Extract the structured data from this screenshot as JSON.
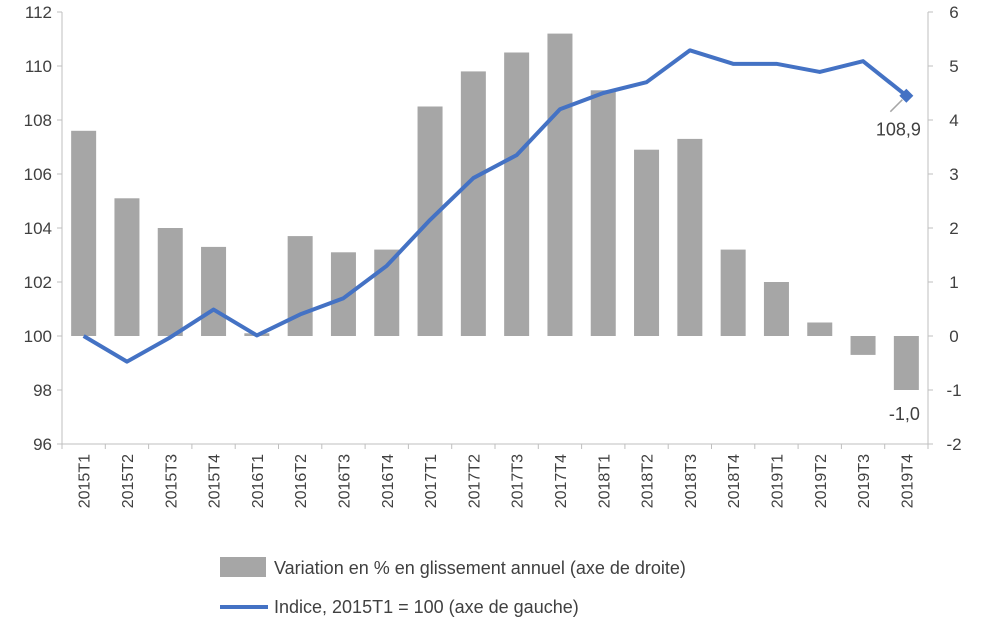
{
  "chart_data": {
    "type": "bar+line",
    "categories": [
      "2015T1",
      "2015T2",
      "2015T3",
      "2015T4",
      "2016T1",
      "2016T2",
      "2016T3",
      "2016T4",
      "2017T1",
      "2017T2",
      "2017T3",
      "2017T4",
      "2018T1",
      "2018T2",
      "2018T3",
      "2018T4",
      "2019T1",
      "2019T2",
      "2019T3",
      "2019T4"
    ],
    "series": [
      {
        "name": "Variation en % en glissement annuel (axe de droite)",
        "kind": "bar",
        "axis": "right",
        "color": "#a6a6a6",
        "values": [
          3.8,
          2.55,
          2.0,
          1.65,
          0.05,
          1.85,
          1.55,
          1.6,
          4.25,
          4.9,
          5.25,
          5.6,
          4.55,
          3.45,
          3.65,
          1.6,
          1.0,
          0.25,
          -0.35,
          -1.0
        ]
      },
      {
        "name": "Indice, 2015T1 = 100 (axe de gauche)",
        "kind": "line",
        "axis": "left",
        "color": "#4472c4",
        "values": [
          100.0,
          99.05,
          99.95,
          100.98,
          100.02,
          100.8,
          101.4,
          102.6,
          104.3,
          105.85,
          106.7,
          108.4,
          109.0,
          109.4,
          110.58,
          110.08,
          110.08,
          109.78,
          110.18,
          108.9
        ]
      }
    ],
    "y_left": {
      "ylim": [
        96,
        112
      ],
      "ticks": [
        "96",
        "98",
        "100",
        "102",
        "104",
        "106",
        "108",
        "110",
        "112"
      ]
    },
    "y_right": {
      "ylim": [
        -2,
        6
      ],
      "ticks": [
        "-2",
        "-1",
        "0",
        "1",
        "2",
        "3",
        "4",
        "5",
        "6"
      ]
    },
    "annotations": [
      {
        "text": "108,9",
        "series": 1,
        "index": 19
      },
      {
        "text": "-1,0",
        "series": 0,
        "index": 19
      }
    ],
    "grid": false,
    "legend": "bottom"
  }
}
